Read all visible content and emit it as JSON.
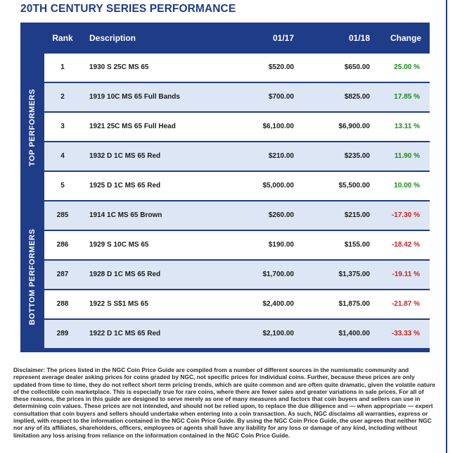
{
  "title": "20TH CENTURY SERIES PERFORMANCE",
  "headers": {
    "rank": "Rank",
    "description": "Description",
    "v17": "01/17",
    "v18": "01/18",
    "change": "Change"
  },
  "groups": {
    "top": "TOP PERFORMERS",
    "bottom": "BOTTOM PERFORMERS"
  },
  "rows": [
    {
      "rank": "1",
      "description": "1930 S 25C MS 65",
      "v17": "$520.00",
      "v18": "$650.00",
      "change": "25.00 %"
    },
    {
      "rank": "2",
      "description": "1919 10C MS 65 Full Bands",
      "v17": "$700.00",
      "v18": "$825.00",
      "change": "17.85 %"
    },
    {
      "rank": "3",
      "description": "1921 25C MS 65 Full Head",
      "v17": "$6,100.00",
      "v18": "$6,900.00",
      "change": "13.11 %"
    },
    {
      "rank": "4",
      "description": "1932 D 1C MS 65 Red",
      "v17": "$210.00",
      "v18": "$235.00",
      "change": "11.90 %"
    },
    {
      "rank": "5",
      "description": "1925 D 1C MS 65 Red",
      "v17": "$5,000.00",
      "v18": "$5,500.00",
      "change": "10.00 %"
    },
    {
      "rank": "285",
      "description": "1914 1C MS 65 Brown",
      "v17": "$260.00",
      "v18": "$215.00",
      "change": "-17.30 %"
    },
    {
      "rank": "286",
      "description": "1929 S 10C MS 65",
      "v17": "$190.00",
      "v18": "$155.00",
      "change": "-18.42 %"
    },
    {
      "rank": "287",
      "description": "1928 D 1C MS 65 Red",
      "v17": "$1,700.00",
      "v18": "$1,375.00",
      "change": "-19.11 %"
    },
    {
      "rank": "288",
      "description": "1922 S S$1 MS 65",
      "v17": "$2,400.00",
      "v18": "$1,875.00",
      "change": "-21.87 %"
    },
    {
      "rank": "289",
      "description": "1922 D 1C MS 65 Red",
      "v17": "$2,100.00",
      "v18": "$1,400.00",
      "change": "-33.33 %"
    }
  ],
  "colors": {
    "navy": "#1f3c88",
    "row_white": "#ffffff",
    "row_blue": "#dce6f4",
    "positive": "#1a8a1a",
    "negative": "#d0201c"
  },
  "disclaimer": "Disclaimer: The prices listed in the NGC Coin Price Guide are compiled from a number of different sources in the numismatic community and represent average dealer asking prices for coins graded by NGC, not specific prices for individual coins. Further, because these prices are only updated from time to time, they do not reflect short term pricing trends, which are quite common and are often quite dramatic, given the volatile nature of the collectible coin marketplace. This is especially true for rare coins, where there are fewer sales and greater variations in sale prices. For all of these reasons, the prices in this guide are designed to serve merely as one of many measures and factors that coin buyers and sellers can use in determining coin values. These prices are not intended, and should not be relied upon, to replace the due diligence and — when appropriate — expert consultation that coin buyers and sellers should undertake when entering into a coin transaction. As such, NGC disclaims all warranties, express or implied, with respect to the information contained in the NGC Coin Price Guide. By using the NGC Coin Price Guide, the user agrees that neither NGC nor any of its affiliates, shareholders, officers, employees or agents shall have any liability for any loss or damage of any kind, including without limitation any loss arising from reliance on the information contained in the NGC Coin Price Guide."
}
